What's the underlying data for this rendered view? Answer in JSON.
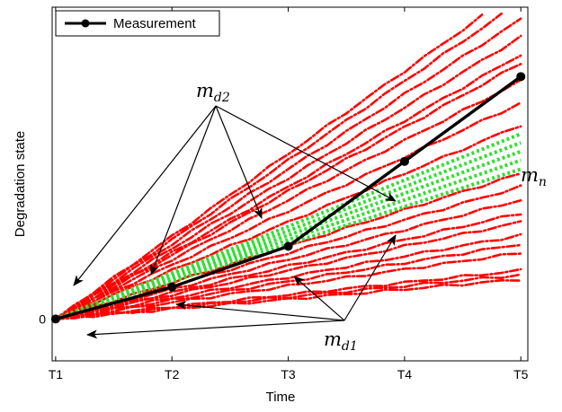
{
  "chart_data": {
    "type": "line",
    "title": "",
    "xlabel": "Time",
    "ylabel": "Degradation state",
    "x_ticks": [
      "T1",
      "T2",
      "T3",
      "T4",
      "T5"
    ],
    "y_ticks": [
      {
        "value": 0,
        "label": "0"
      }
    ],
    "xlim": [
      0.97,
      5.06
    ],
    "ylim": [
      -0.38,
      2.83
    ],
    "grid": false,
    "legend": {
      "position": "top-left",
      "entries": [
        {
          "label": "Measurement",
          "color": "#000000"
        }
      ]
    },
    "series": [
      {
        "name": "Measurement",
        "color": "#000000",
        "style": "solid-markers",
        "x": [
          1,
          2,
          3,
          4,
          5
        ],
        "y": [
          0,
          0.29,
          0.66,
          1.43,
          2.2
        ]
      }
    ],
    "trajectory_groups": [
      {
        "label": "m_n",
        "color": "#33dd33",
        "style": "dotted",
        "slopes": [
          0.34,
          0.36,
          0.38,
          0.4,
          0.42
        ]
      },
      {
        "label": "m_d1",
        "color": "#ff0000",
        "style": "dash-dot",
        "slopes": [
          0.09,
          0.1,
          0.11,
          0.15,
          0.17,
          0.19,
          0.22,
          0.24,
          0.27,
          0.3,
          0.33
        ]
      },
      {
        "label": "m_d2",
        "color": "#ff0000",
        "style": "dash-dot",
        "slopes": [
          0.44,
          0.49,
          0.54,
          0.58,
          0.6,
          0.64,
          0.68,
          0.72,
          0.75
        ]
      }
    ],
    "annotations": [
      {
        "id": "md2",
        "main": "m",
        "sub": "d2"
      },
      {
        "id": "md1",
        "main": "m",
        "sub": "d1"
      },
      {
        "id": "mn",
        "main": "m",
        "sub": "n"
      }
    ]
  }
}
